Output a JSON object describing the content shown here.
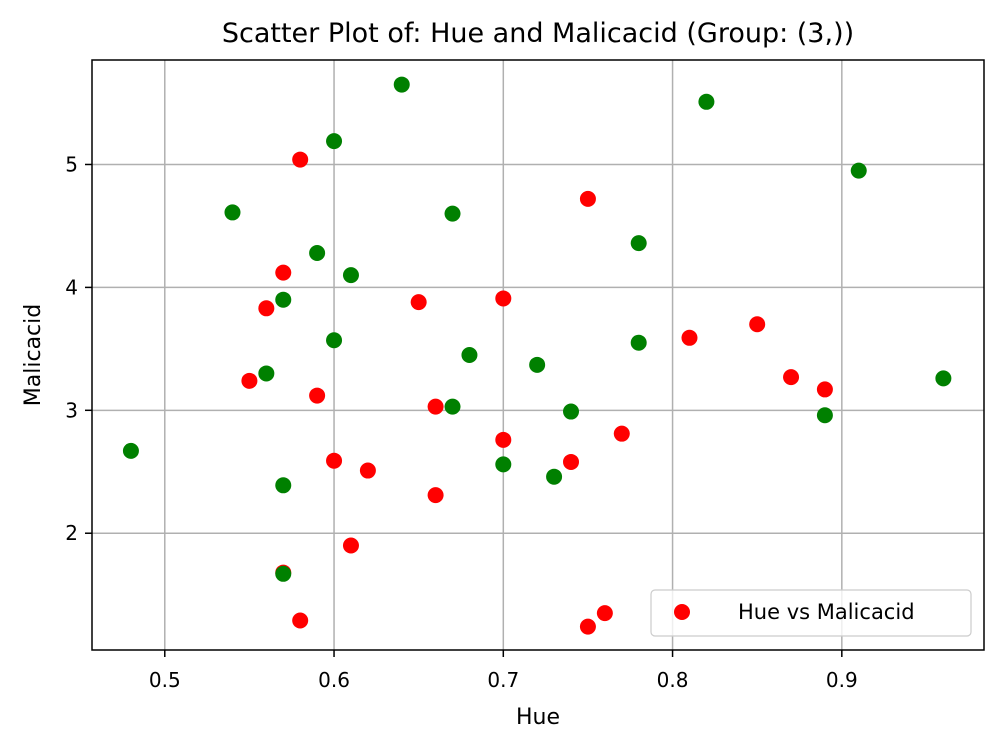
{
  "chart_data": {
    "type": "scatter",
    "title": "Scatter Plot of: Hue and Malicacid (Group: (3,))",
    "xlabel": "Hue",
    "ylabel": "Malicacid",
    "xlim": [
      0.457,
      0.984
    ],
    "ylim": [
      1.05,
      5.85
    ],
    "xticks": [
      0.5,
      0.6,
      0.7,
      0.8,
      0.9
    ],
    "xtick_labels": [
      "0.5",
      "0.6",
      "0.7",
      "0.8",
      "0.9"
    ],
    "yticks": [
      2,
      3,
      4,
      5
    ],
    "ytick_labels": [
      "2",
      "3",
      "4",
      "5"
    ],
    "grid": true,
    "legend": {
      "position": "lower-right",
      "entries": [
        {
          "label": "Hue vs Malicacid",
          "color": "#ff0000"
        }
      ]
    },
    "series": [
      {
        "name": "Hue vs Malicacid",
        "color": "#ff0000",
        "x": [
          0.58,
          0.75,
          0.57,
          0.56,
          0.65,
          0.7,
          0.81,
          0.85,
          0.55,
          0.59,
          0.87,
          0.89,
          0.66,
          0.7,
          0.77,
          0.6,
          0.62,
          0.74,
          0.66,
          0.61,
          0.57,
          0.58,
          0.75,
          0.76
        ],
        "y": [
          5.04,
          4.72,
          4.12,
          3.83,
          3.88,
          3.91,
          3.59,
          3.7,
          3.24,
          3.12,
          3.27,
          3.17,
          3.03,
          2.76,
          2.81,
          2.59,
          2.51,
          2.58,
          2.31,
          1.9,
          1.68,
          1.29,
          1.24,
          1.35
        ]
      },
      {
        "name": "",
        "color": "#008000",
        "x": [
          0.64,
          0.82,
          0.6,
          0.54,
          0.91,
          0.67,
          0.59,
          0.78,
          0.61,
          0.57,
          0.6,
          0.68,
          0.72,
          0.78,
          0.56,
          0.96,
          0.67,
          0.74,
          0.89,
          0.48,
          0.7,
          0.73,
          0.57,
          0.57
        ],
        "y": [
          5.65,
          5.51,
          5.19,
          4.61,
          4.95,
          4.6,
          4.28,
          4.36,
          4.1,
          3.9,
          3.57,
          3.45,
          3.37,
          3.55,
          3.3,
          3.26,
          3.03,
          2.99,
          2.96,
          2.67,
          2.56,
          2.46,
          2.39,
          1.67
        ]
      }
    ]
  },
  "colors": {
    "red": "#ff0000",
    "green": "#008000",
    "grid": "#b0b0b0",
    "axis": "#000000"
  }
}
